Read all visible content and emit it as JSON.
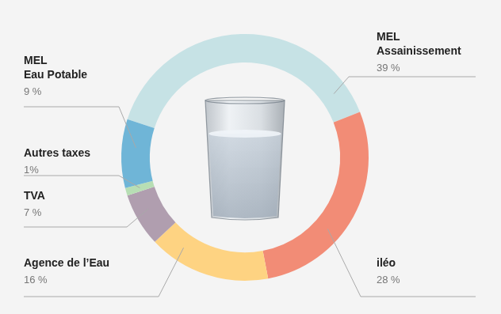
{
  "chart_data": {
    "type": "doughnut",
    "categories": [
      "MEL\nAssainissement",
      "iléo",
      "Agence de l’Eau",
      "TVA",
      "Autres taxes",
      "MEL\nEau Potable"
    ],
    "values": [
      39,
      28,
      16,
      7,
      1,
      9
    ],
    "value_labels": [
      "39 %",
      "28 %",
      "16 %",
      "7 %",
      "1%",
      "9 %"
    ],
    "colors": [
      "#c6e2e5",
      "#f28c76",
      "#fed382",
      "#b09eaf",
      "#b7deb4",
      "#6fb5d7"
    ],
    "data_labels": true
  }
}
